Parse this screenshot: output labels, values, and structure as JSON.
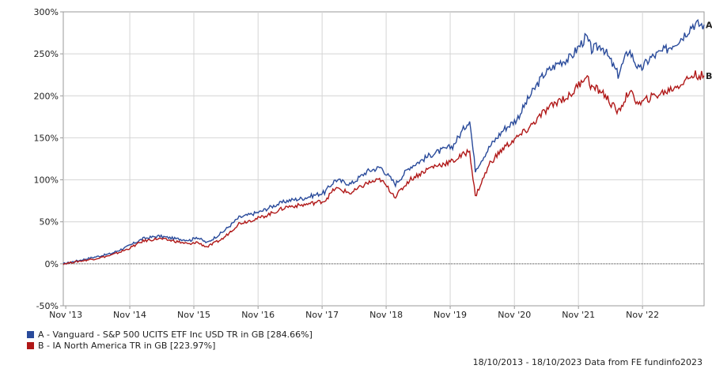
{
  "chart_data": {
    "type": "line",
    "x": [
      "Nov '13",
      "Nov '14",
      "Nov '15",
      "Nov '16",
      "Nov '17",
      "Nov '18",
      "Nov '19",
      "Nov '20",
      "Nov '21",
      "Nov '22"
    ],
    "y_ticks": [
      "300%",
      "250%",
      "200%",
      "150%",
      "100%",
      "50%",
      "0%",
      "-50%"
    ],
    "ylim": [
      -50,
      300
    ],
    "grid": true,
    "series": [
      {
        "name": "A - Vanguard - S&P 500 UCITS ETF Inc USD TR in GB [284.66%]",
        "end_label": "A",
        "color": "#2a4b9b",
        "points": [
          [
            "2013-10-18",
            0
          ],
          [
            "2014-01-15",
            4
          ],
          [
            "2014-04-15",
            8
          ],
          [
            "2014-07-15",
            12
          ],
          [
            "2014-10-15",
            20
          ],
          [
            "2015-01-15",
            30
          ],
          [
            "2015-04-15",
            33
          ],
          [
            "2015-07-15",
            30
          ],
          [
            "2015-10-15",
            28
          ],
          [
            "2015-11-15",
            32
          ],
          [
            "2016-01-15",
            25
          ],
          [
            "2016-04-15",
            38
          ],
          [
            "2016-07-15",
            55
          ],
          [
            "2016-11-15",
            62
          ],
          [
            "2017-01-15",
            68
          ],
          [
            "2017-04-15",
            75
          ],
          [
            "2017-07-15",
            78
          ],
          [
            "2017-11-15",
            85
          ],
          [
            "2018-01-15",
            100
          ],
          [
            "2018-04-15",
            95
          ],
          [
            "2018-07-15",
            110
          ],
          [
            "2018-10-01",
            115
          ],
          [
            "2018-12-24",
            95
          ],
          [
            "2019-03-15",
            115
          ],
          [
            "2019-07-15",
            130
          ],
          [
            "2019-11-15",
            140
          ],
          [
            "2020-01-15",
            160
          ],
          [
            "2020-02-20",
            172
          ],
          [
            "2020-03-23",
            112
          ],
          [
            "2020-06-15",
            140
          ],
          [
            "2020-09-01",
            160
          ],
          [
            "2020-11-15",
            172
          ],
          [
            "2021-01-15",
            195
          ],
          [
            "2021-04-15",
            225
          ],
          [
            "2021-07-15",
            240
          ],
          [
            "2021-09-15",
            245
          ],
          [
            "2021-12-15",
            270
          ],
          [
            "2022-01-15",
            255
          ],
          [
            "2022-03-15",
            260
          ],
          [
            "2022-06-15",
            225
          ],
          [
            "2022-08-15",
            255
          ],
          [
            "2022-10-15",
            230
          ],
          [
            "2022-12-15",
            245
          ],
          [
            "2023-03-15",
            255
          ],
          [
            "2023-06-15",
            270
          ],
          [
            "2023-08-15",
            285
          ],
          [
            "2023-10-18",
            284.66
          ]
        ]
      },
      {
        "name": "B - IA North America TR in GB [223.97%]",
        "end_label": "B",
        "color": "#b01818",
        "points": [
          [
            "2013-10-18",
            0
          ],
          [
            "2014-01-15",
            3
          ],
          [
            "2014-04-15",
            6
          ],
          [
            "2014-07-15",
            10
          ],
          [
            "2014-10-15",
            17
          ],
          [
            "2015-01-15",
            27
          ],
          [
            "2015-04-15",
            30
          ],
          [
            "2015-07-15",
            27
          ],
          [
            "2015-10-15",
            23
          ],
          [
            "2015-11-15",
            26
          ],
          [
            "2016-01-15",
            20
          ],
          [
            "2016-04-15",
            30
          ],
          [
            "2016-07-15",
            48
          ],
          [
            "2016-11-15",
            55
          ],
          [
            "2017-01-15",
            60
          ],
          [
            "2017-04-15",
            68
          ],
          [
            "2017-07-15",
            70
          ],
          [
            "2017-11-15",
            75
          ],
          [
            "2018-01-15",
            90
          ],
          [
            "2018-04-15",
            84
          ],
          [
            "2018-07-15",
            96
          ],
          [
            "2018-10-01",
            100
          ],
          [
            "2018-12-24",
            80
          ],
          [
            "2019-03-15",
            100
          ],
          [
            "2019-07-15",
            115
          ],
          [
            "2019-11-15",
            122
          ],
          [
            "2020-01-15",
            130
          ],
          [
            "2020-02-20",
            135
          ],
          [
            "2020-03-23",
            80
          ],
          [
            "2020-06-15",
            120
          ],
          [
            "2020-09-01",
            138
          ],
          [
            "2020-11-15",
            150
          ],
          [
            "2021-01-15",
            160
          ],
          [
            "2021-04-15",
            180
          ],
          [
            "2021-07-15",
            195
          ],
          [
            "2021-09-15",
            200
          ],
          [
            "2021-12-15",
            225
          ],
          [
            "2022-01-15",
            210
          ],
          [
            "2022-03-15",
            205
          ],
          [
            "2022-06-15",
            180
          ],
          [
            "2022-08-15",
            205
          ],
          [
            "2022-10-15",
            190
          ],
          [
            "2022-12-15",
            198
          ],
          [
            "2023-03-15",
            205
          ],
          [
            "2023-06-15",
            215
          ],
          [
            "2023-08-15",
            225
          ],
          [
            "2023-10-18",
            223.97
          ]
        ]
      }
    ]
  },
  "footer": "18/10/2013 - 18/10/2023 Data from FE fundinfo2023"
}
